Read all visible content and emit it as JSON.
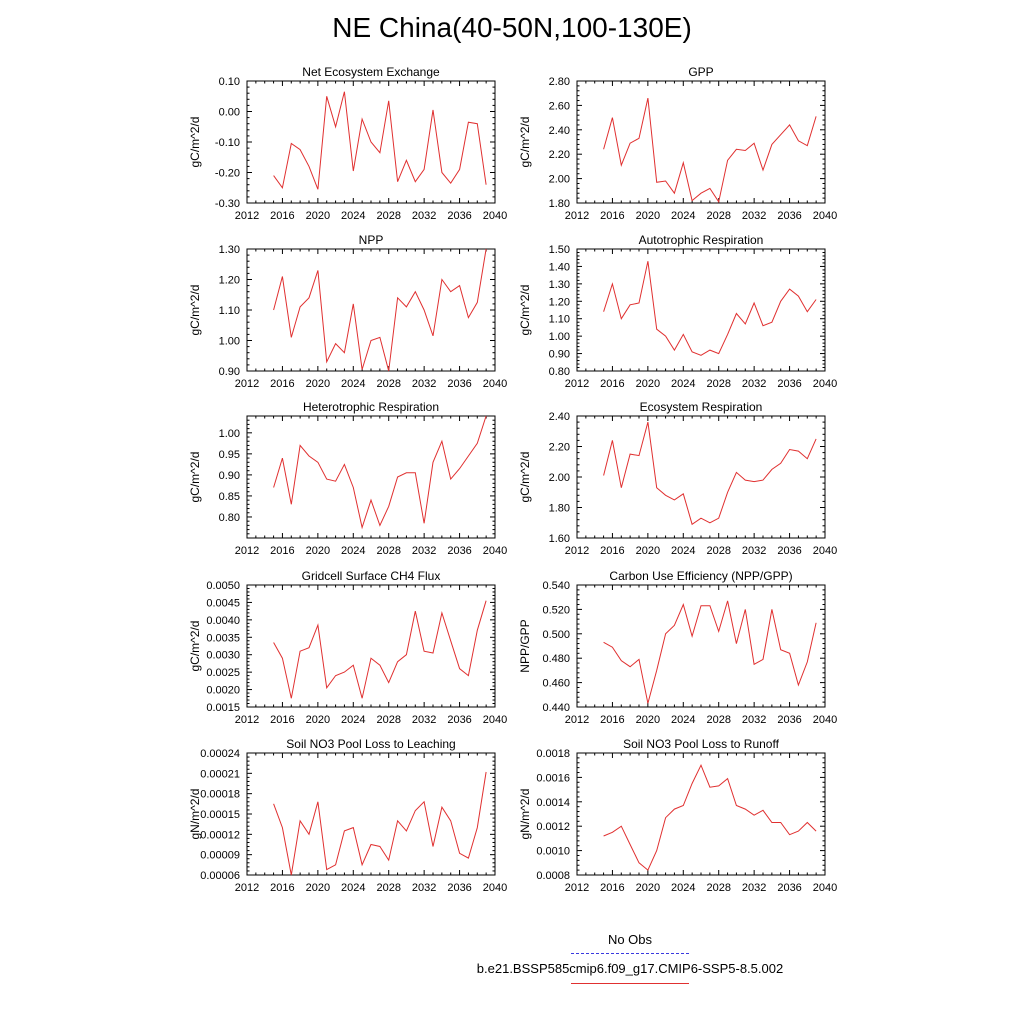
{
  "title": "NE China(40-50N,100-130E)",
  "legend": {
    "obs_label": "No Obs",
    "run_label": "b.e21.BSSP585cmip6.f09_g17.CMIP6-SSP5-8.5.002",
    "obs_color": "#3a3ae0",
    "run_color": "#e03030"
  },
  "chart_data": [
    {
      "type": "line",
      "title": "Net Ecosystem Exchange",
      "ylabel": "gC/m^2/d",
      "xlim": [
        2012,
        2040
      ],
      "xticks": [
        "2012",
        "2016",
        "2020",
        "2024",
        "2028",
        "2032",
        "2036",
        "2040"
      ],
      "ylim": [
        -0.3,
        0.1
      ],
      "yticks": [
        "-0.30",
        "-0.20",
        "-0.10",
        "0.00",
        "0.10"
      ],
      "x": [
        2015,
        2016,
        2017,
        2018,
        2019,
        2020,
        2021,
        2022,
        2023,
        2024,
        2025,
        2026,
        2027,
        2028,
        2029,
        2030,
        2031,
        2032,
        2033,
        2034,
        2035,
        2036,
        2037,
        2038,
        2039
      ],
      "values": [
        -0.21,
        -0.25,
        -0.105,
        -0.125,
        -0.18,
        -0.255,
        0.05,
        -0.05,
        0.065,
        -0.195,
        -0.025,
        -0.1,
        -0.135,
        0.035,
        -0.23,
        -0.16,
        -0.23,
        -0.19,
        0.005,
        -0.2,
        -0.235,
        -0.19,
        -0.035,
        -0.04,
        -0.24
      ]
    },
    {
      "type": "line",
      "title": "GPP",
      "ylabel": "gC/m^2/d",
      "xlim": [
        2012,
        2040
      ],
      "xticks": [
        "2012",
        "2016",
        "2020",
        "2024",
        "2028",
        "2032",
        "2036",
        "2040"
      ],
      "ylim": [
        1.8,
        2.8
      ],
      "yticks": [
        "1.80",
        "2.00",
        "2.20",
        "2.40",
        "2.60",
        "2.80"
      ],
      "x": [
        2015,
        2016,
        2017,
        2018,
        2019,
        2020,
        2021,
        2022,
        2023,
        2024,
        2025,
        2026,
        2027,
        2028,
        2029,
        2030,
        2031,
        2032,
        2033,
        2034,
        2035,
        2036,
        2037,
        2038,
        2039
      ],
      "values": [
        2.24,
        2.5,
        2.11,
        2.29,
        2.33,
        2.66,
        1.97,
        1.98,
        1.88,
        2.13,
        1.82,
        1.88,
        1.92,
        1.81,
        2.15,
        2.24,
        2.23,
        2.29,
        2.07,
        2.28,
        2.36,
        2.44,
        2.31,
        2.27,
        2.51
      ]
    },
    {
      "type": "line",
      "title": "NPP",
      "ylabel": "gC/m^2/d",
      "xlim": [
        2012,
        2040
      ],
      "xticks": [
        "2012",
        "2016",
        "2020",
        "2024",
        "2028",
        "2032",
        "2036",
        "2040"
      ],
      "ylim": [
        0.9,
        1.3
      ],
      "yticks": [
        "0.90",
        "1.00",
        "1.10",
        "1.20",
        "1.30"
      ],
      "x": [
        2015,
        2016,
        2017,
        2018,
        2019,
        2020,
        2021,
        2022,
        2023,
        2024,
        2025,
        2026,
        2027,
        2028,
        2029,
        2030,
        2031,
        2032,
        2033,
        2034,
        2035,
        2036,
        2037,
        2038,
        2039
      ],
      "values": [
        1.1,
        1.21,
        1.01,
        1.11,
        1.14,
        1.23,
        0.93,
        0.99,
        0.96,
        1.12,
        0.905,
        1.0,
        1.01,
        0.9,
        1.14,
        1.11,
        1.16,
        1.1,
        1.015,
        1.2,
        1.16,
        1.18,
        1.075,
        1.125,
        1.3
      ]
    },
    {
      "type": "line",
      "title": "Autotrophic Respiration",
      "ylabel": "gC/m^2/d",
      "xlim": [
        2012,
        2040
      ],
      "xticks": [
        "2012",
        "2016",
        "2020",
        "2024",
        "2028",
        "2032",
        "2036",
        "2040"
      ],
      "ylim": [
        0.8,
        1.5
      ],
      "yticks": [
        "0.80",
        "0.90",
        "1.00",
        "1.10",
        "1.20",
        "1.30",
        "1.40",
        "1.50"
      ],
      "x": [
        2015,
        2016,
        2017,
        2018,
        2019,
        2020,
        2021,
        2022,
        2023,
        2024,
        2025,
        2026,
        2027,
        2028,
        2029,
        2030,
        2031,
        2032,
        2033,
        2034,
        2035,
        2036,
        2037,
        2038,
        2039
      ],
      "values": [
        1.14,
        1.3,
        1.1,
        1.18,
        1.19,
        1.43,
        1.04,
        1.0,
        0.92,
        1.01,
        0.91,
        0.89,
        0.92,
        0.9,
        1.01,
        1.13,
        1.07,
        1.19,
        1.06,
        1.08,
        1.2,
        1.27,
        1.23,
        1.14,
        1.21
      ]
    },
    {
      "type": "line",
      "title": "Heterotrophic Respiration",
      "ylabel": "gC/m^2/d",
      "xlim": [
        2012,
        2040
      ],
      "xticks": [
        "2012",
        "2016",
        "2020",
        "2024",
        "2028",
        "2032",
        "2036",
        "2040"
      ],
      "ylim": [
        0.75,
        1.04
      ],
      "yticks": [
        "0.80",
        "0.85",
        "0.90",
        "0.95",
        "1.00"
      ],
      "x": [
        2015,
        2016,
        2017,
        2018,
        2019,
        2020,
        2021,
        2022,
        2023,
        2024,
        2025,
        2026,
        2027,
        2028,
        2029,
        2030,
        2031,
        2032,
        2033,
        2034,
        2035,
        2036,
        2037,
        2038,
        2039
      ],
      "values": [
        0.87,
        0.94,
        0.83,
        0.97,
        0.945,
        0.93,
        0.89,
        0.885,
        0.925,
        0.87,
        0.775,
        0.84,
        0.78,
        0.825,
        0.895,
        0.905,
        0.905,
        0.785,
        0.93,
        0.98,
        0.89,
        0.915,
        0.945,
        0.975,
        1.04
      ]
    },
    {
      "type": "line",
      "title": "Ecosystem Respiration",
      "ylabel": "gC/m^2/d",
      "xlim": [
        2012,
        2040
      ],
      "xticks": [
        "2012",
        "2016",
        "2020",
        "2024",
        "2028",
        "2032",
        "2036",
        "2040"
      ],
      "ylim": [
        1.6,
        2.4
      ],
      "yticks": [
        "1.60",
        "1.80",
        "2.00",
        "2.20",
        "2.40"
      ],
      "x": [
        2015,
        2016,
        2017,
        2018,
        2019,
        2020,
        2021,
        2022,
        2023,
        2024,
        2025,
        2026,
        2027,
        2028,
        2029,
        2030,
        2031,
        2032,
        2033,
        2034,
        2035,
        2036,
        2037,
        2038,
        2039
      ],
      "values": [
        2.01,
        2.24,
        1.93,
        2.15,
        2.14,
        2.36,
        1.93,
        1.88,
        1.85,
        1.89,
        1.69,
        1.73,
        1.7,
        1.73,
        1.9,
        2.03,
        1.98,
        1.97,
        1.98,
        2.05,
        2.09,
        2.18,
        2.17,
        2.12,
        2.25
      ]
    },
    {
      "type": "line",
      "title": "Gridcell Surface CH4 Flux",
      "ylabel": "gC/m^2/d",
      "xlim": [
        2012,
        2040
      ],
      "xticks": [
        "2012",
        "2016",
        "2020",
        "2024",
        "2028",
        "2032",
        "2036",
        "2040"
      ],
      "ylim": [
        0.0015,
        0.005
      ],
      "yticks": [
        "0.0015",
        "0.0020",
        "0.0025",
        "0.0030",
        "0.0035",
        "0.0040",
        "0.0045",
        "0.0050"
      ],
      "x": [
        2015,
        2016,
        2017,
        2018,
        2019,
        2020,
        2021,
        2022,
        2023,
        2024,
        2025,
        2026,
        2027,
        2028,
        2029,
        2030,
        2031,
        2032,
        2033,
        2034,
        2035,
        2036,
        2037,
        2038,
        2039
      ],
      "values": [
        0.00335,
        0.0029,
        0.00175,
        0.0031,
        0.0032,
        0.00385,
        0.00205,
        0.0024,
        0.0025,
        0.0027,
        0.00175,
        0.0029,
        0.0027,
        0.0022,
        0.0028,
        0.003,
        0.00425,
        0.0031,
        0.00305,
        0.0042,
        0.0034,
        0.0026,
        0.0024,
        0.0037,
        0.00455
      ]
    },
    {
      "type": "line",
      "title": "Carbon Use Efficiency (NPP/GPP)",
      "ylabel": "NPP/GPP",
      "xlim": [
        2012,
        2040
      ],
      "xticks": [
        "2012",
        "2016",
        "2020",
        "2024",
        "2028",
        "2032",
        "2036",
        "2040"
      ],
      "ylim": [
        0.44,
        0.54
      ],
      "yticks": [
        "0.440",
        "0.460",
        "0.480",
        "0.500",
        "0.520",
        "0.540"
      ],
      "x": [
        2015,
        2016,
        2017,
        2018,
        2019,
        2020,
        2021,
        2022,
        2023,
        2024,
        2025,
        2026,
        2027,
        2028,
        2029,
        2030,
        2031,
        2032,
        2033,
        2034,
        2035,
        2036,
        2037,
        2038,
        2039
      ],
      "values": [
        0.493,
        0.489,
        0.478,
        0.473,
        0.479,
        0.443,
        0.47,
        0.5,
        0.507,
        0.524,
        0.498,
        0.523,
        0.523,
        0.502,
        0.527,
        0.492,
        0.52,
        0.475,
        0.479,
        0.52,
        0.487,
        0.484,
        0.458,
        0.477,
        0.509
      ]
    },
    {
      "type": "line",
      "title": "Soil NO3 Pool Loss to Leaching",
      "ylabel": "gN/m^2/d",
      "xlim": [
        2012,
        2040
      ],
      "xticks": [
        "2012",
        "2016",
        "2020",
        "2024",
        "2028",
        "2032",
        "2036",
        "2040"
      ],
      "ylim": [
        6e-05,
        0.00024
      ],
      "yticks": [
        "0.00006",
        "0.00009",
        "0.00012",
        "0.00015",
        "0.00018",
        "0.00021",
        "0.00024"
      ],
      "x": [
        2015,
        2016,
        2017,
        2018,
        2019,
        2020,
        2021,
        2022,
        2023,
        2024,
        2025,
        2026,
        2027,
        2028,
        2029,
        2030,
        2031,
        2032,
        2033,
        2034,
        2035,
        2036,
        2037,
        2038,
        2039
      ],
      "values": [
        0.000165,
        0.00013,
        6e-05,
        0.00014,
        0.00012,
        0.000168,
        6.8e-05,
        7.5e-05,
        0.000125,
        0.00013,
        7.5e-05,
        0.000105,
        0.000102,
        8.2e-05,
        0.00014,
        0.000125,
        0.000155,
        0.000168,
        0.000102,
        0.00016,
        0.00014,
        9.2e-05,
        8.5e-05,
        0.00013,
        0.000212
      ]
    },
    {
      "type": "line",
      "title": "Soil NO3 Pool Loss to Runoff",
      "ylabel": "gN/m^2/d",
      "xlim": [
        2012,
        2040
      ],
      "xticks": [
        "2012",
        "2016",
        "2020",
        "2024",
        "2028",
        "2032",
        "2036",
        "2040"
      ],
      "ylim": [
        0.0008,
        0.0018
      ],
      "yticks": [
        "0.0008",
        "0.0010",
        "0.0012",
        "0.0014",
        "0.0016",
        "0.0018"
      ],
      "x": [
        2015,
        2016,
        2017,
        2018,
        2019,
        2020,
        2021,
        2022,
        2023,
        2024,
        2025,
        2026,
        2027,
        2028,
        2029,
        2030,
        2031,
        2032,
        2033,
        2034,
        2035,
        2036,
        2037,
        2038,
        2039
      ],
      "values": [
        0.00112,
        0.00115,
        0.0012,
        0.00105,
        0.0009,
        0.00084,
        0.001,
        0.00127,
        0.00134,
        0.00137,
        0.00155,
        0.0017,
        0.00152,
        0.00153,
        0.00159,
        0.00137,
        0.00134,
        0.00129,
        0.00133,
        0.00123,
        0.00123,
        0.00113,
        0.00116,
        0.00123,
        0.00116
      ]
    }
  ]
}
